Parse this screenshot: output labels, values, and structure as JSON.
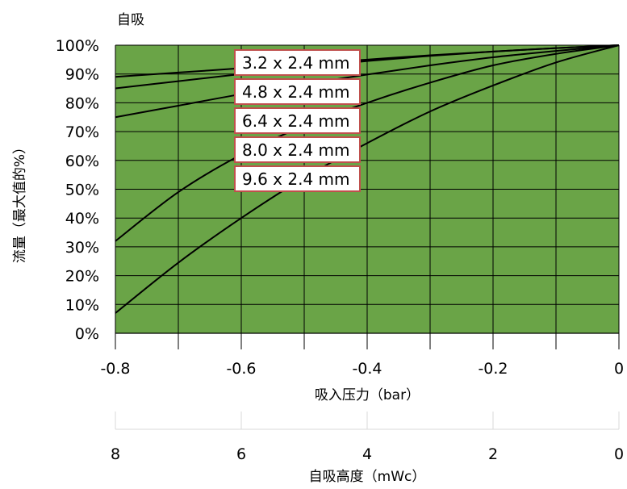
{
  "chart_data": {
    "type": "line",
    "title": "自吸",
    "ylabel": "流量（最大值的%）",
    "xlabel": "吸入压力（bar）",
    "x2label": "自吸高度（mWc）",
    "ylim": [
      0,
      100
    ],
    "xlim": [
      -0.8,
      0
    ],
    "y_ticks": [
      "0%",
      "10%",
      "20%",
      "30%",
      "40%",
      "50%",
      "60%",
      "70%",
      "80%",
      "90%",
      "100%"
    ],
    "x_ticks": [
      "-0.8",
      "-0.6",
      "-0.4",
      "-0.2",
      "0"
    ],
    "x2_ticks": [
      "8",
      "6",
      "4",
      "2",
      "0"
    ],
    "grid": true,
    "plot_background": "#6aa447",
    "line_color": "#000000",
    "legend_border_color": "#c0504d",
    "x": [
      -0.8,
      -0.7,
      -0.6,
      -0.5,
      -0.4,
      -0.3,
      -0.2,
      -0.1,
      0
    ],
    "series": [
      {
        "name": "3.2 x 2.4 mm",
        "values": [
          89,
          90.5,
          92,
          93.5,
          95,
          96.5,
          97.8,
          99,
          100
        ]
      },
      {
        "name": "4.8 x 2.4 mm",
        "values": [
          85,
          87.5,
          90,
          92.3,
          94.5,
          96.3,
          97.8,
          99,
          100
        ]
      },
      {
        "name": "6.4 x 2.4 mm",
        "values": [
          75,
          79,
          83,
          86.5,
          89.8,
          93,
          95.8,
          98,
          100
        ]
      },
      {
        "name": "8.0 x 2.4 mm",
        "values": [
          32,
          49,
          62,
          72,
          80,
          87,
          93,
          97,
          100
        ]
      },
      {
        "name": "9.6 x 2.4 mm",
        "values": [
          7,
          24.5,
          40,
          54,
          66,
          77,
          86,
          94,
          100
        ]
      }
    ]
  }
}
